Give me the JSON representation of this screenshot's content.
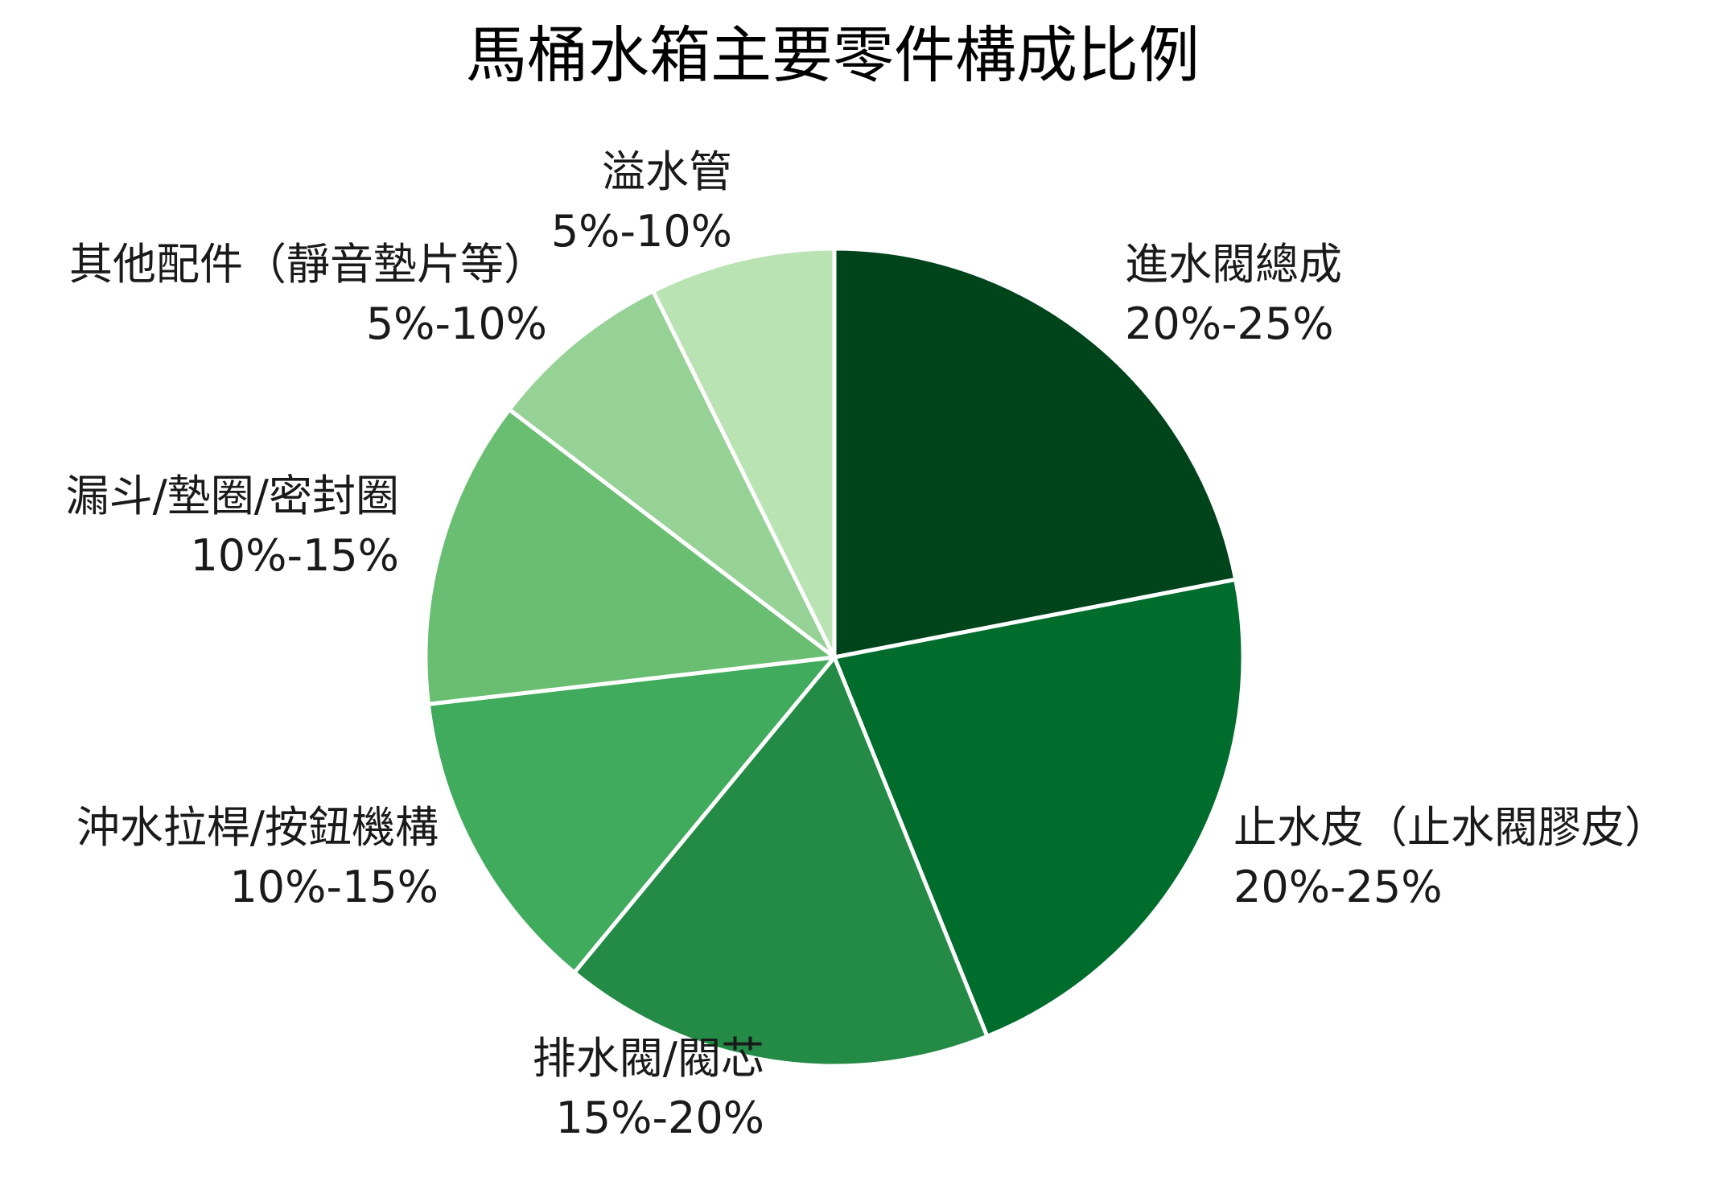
{
  "chart_data": {
    "type": "pie",
    "title": "馬桶水箱主要零件構成比例",
    "start_angle_deg": 0,
    "direction": "clockwise",
    "slices": [
      {
        "label": "進水閥總成",
        "range": "20%-25%",
        "value": 22.5,
        "color": "#00441b"
      },
      {
        "label": "止水皮（止水閥膠皮）",
        "range": "20%-25%",
        "value": 22.5,
        "color": "#006d2c"
      },
      {
        "label": "排水閥/閥芯",
        "range": "15%-20%",
        "value": 17.5,
        "color": "#238b45"
      },
      {
        "label": "沖水拉桿/按鈕機構",
        "range": "10%-15%",
        "value": 12.5,
        "color": "#41ab5d"
      },
      {
        "label": "漏斗/墊圈/密封圈",
        "range": "10%-15%",
        "value": 12.5,
        "color": "#6abe71"
      },
      {
        "label": "其他配件（靜音墊片等）",
        "range": "5%-10%",
        "value": 7.5,
        "color": "#96d296"
      },
      {
        "label": "溢水管",
        "range": "5%-10%",
        "value": 7.5,
        "color": "#b9e3b2"
      }
    ]
  }
}
